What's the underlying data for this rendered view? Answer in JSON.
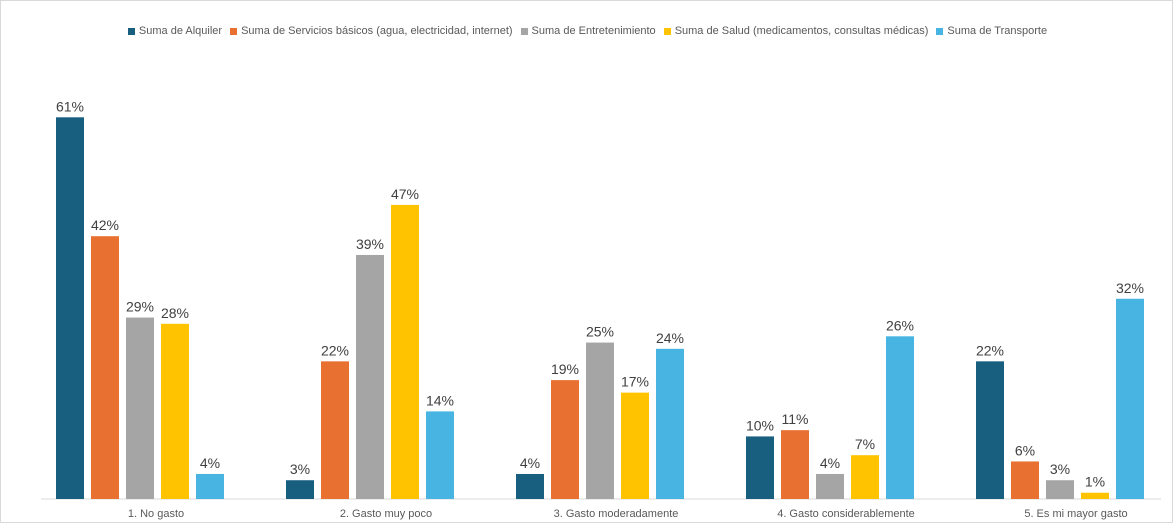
{
  "chart_data": {
    "type": "bar",
    "title": "",
    "xlabel": "",
    "ylabel": "",
    "ylim": [
      0,
      70
    ],
    "grid": false,
    "legend_position": "top",
    "value_format": "{v}%",
    "categories": [
      "1. No gasto",
      "2. Gasto muy poco",
      "3. Gasto moderadamente",
      "4. Gasto considerablemente",
      "5. Es mi mayor gasto"
    ],
    "series": [
      {
        "name": "Suma de Alquiler",
        "color": "#175E7F",
        "values": [
          61,
          3,
          4,
          10,
          22
        ]
      },
      {
        "name": "Suma de Servicios básicos (agua, electricidad, internet)",
        "color": "#E87030",
        "values": [
          42,
          22,
          19,
          11,
          6
        ]
      },
      {
        "name": "Suma de Entretenimiento",
        "color": "#A5A5A5",
        "values": [
          29,
          39,
          25,
          4,
          3
        ]
      },
      {
        "name": "Suma de Salud (medicamentos, consultas médicas)",
        "color": "#FFC300",
        "values": [
          28,
          47,
          17,
          7,
          1
        ]
      },
      {
        "name": "Suma de Transporte",
        "color": "#47B4E2",
        "values": [
          4,
          14,
          24,
          26,
          32
        ]
      }
    ]
  }
}
